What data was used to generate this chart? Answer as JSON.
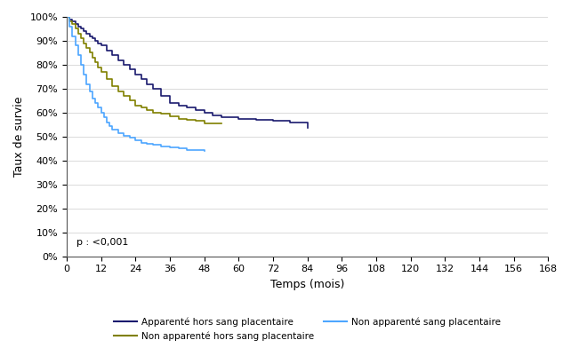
{
  "title": "",
  "xlabel": "Temps (mois)",
  "ylabel": "Taux de survie",
  "pvalue": "p : <0,001",
  "xlim": [
    0,
    168
  ],
  "ylim": [
    0,
    1.0
  ],
  "xticks": [
    0,
    12,
    24,
    36,
    48,
    60,
    72,
    84,
    96,
    108,
    120,
    132,
    144,
    156,
    168
  ],
  "yticks": [
    0.0,
    0.1,
    0.2,
    0.3,
    0.4,
    0.5,
    0.6,
    0.7,
    0.8,
    0.9,
    1.0
  ],
  "series": [
    {
      "label": "Apparenté hors sang placentaire",
      "color": "#1a1a6e",
      "x": [
        0,
        1,
        2,
        3,
        4,
        5,
        6,
        7,
        8,
        9,
        10,
        11,
        12,
        14,
        16,
        18,
        20,
        22,
        24,
        26,
        28,
        30,
        33,
        36,
        39,
        42,
        45,
        48,
        51,
        54,
        60,
        66,
        72,
        78,
        84
      ],
      "y": [
        1.0,
        0.99,
        0.98,
        0.97,
        0.96,
        0.95,
        0.94,
        0.93,
        0.92,
        0.91,
        0.9,
        0.89,
        0.88,
        0.86,
        0.84,
        0.82,
        0.8,
        0.78,
        0.76,
        0.74,
        0.72,
        0.7,
        0.67,
        0.64,
        0.63,
        0.62,
        0.61,
        0.6,
        0.59,
        0.58,
        0.575,
        0.57,
        0.565,
        0.56,
        0.535
      ]
    },
    {
      "label": "Non apparenté hors sang placentaire",
      "color": "#808000",
      "x": [
        0,
        1,
        2,
        3,
        4,
        5,
        6,
        7,
        8,
        9,
        10,
        11,
        12,
        14,
        16,
        18,
        20,
        22,
        24,
        26,
        28,
        30,
        33,
        36,
        39,
        42,
        45,
        48,
        51,
        54
      ],
      "y": [
        1.0,
        0.98,
        0.97,
        0.95,
        0.93,
        0.91,
        0.89,
        0.87,
        0.85,
        0.83,
        0.81,
        0.79,
        0.77,
        0.74,
        0.71,
        0.69,
        0.67,
        0.65,
        0.63,
        0.62,
        0.61,
        0.6,
        0.595,
        0.585,
        0.575,
        0.57,
        0.565,
        0.555,
        0.555,
        0.555
      ]
    },
    {
      "label": "Non apparenté sang placentaire",
      "color": "#4da6ff",
      "x": [
        0,
        1,
        2,
        3,
        4,
        5,
        6,
        7,
        8,
        9,
        10,
        11,
        12,
        13,
        14,
        15,
        16,
        18,
        20,
        22,
        24,
        26,
        28,
        30,
        33,
        36,
        39,
        42,
        45,
        48
      ],
      "y": [
        1.0,
        0.96,
        0.92,
        0.88,
        0.84,
        0.8,
        0.76,
        0.72,
        0.69,
        0.66,
        0.64,
        0.62,
        0.6,
        0.58,
        0.56,
        0.545,
        0.53,
        0.515,
        0.505,
        0.495,
        0.485,
        0.475,
        0.47,
        0.465,
        0.46,
        0.455,
        0.45,
        0.445,
        0.445,
        0.44
      ]
    }
  ],
  "legend": [
    {
      "label": "Apparenté hors sang placentaire",
      "color": "#1a1a6e"
    },
    {
      "label": "Non apparenté hors sang placentaire",
      "color": "#808000"
    },
    {
      "label": "Non apparenté sang placentaire",
      "color": "#4da6ff"
    }
  ],
  "background_color": "#ffffff",
  "figsize": [
    6.42,
    4.01
  ],
  "dpi": 100
}
